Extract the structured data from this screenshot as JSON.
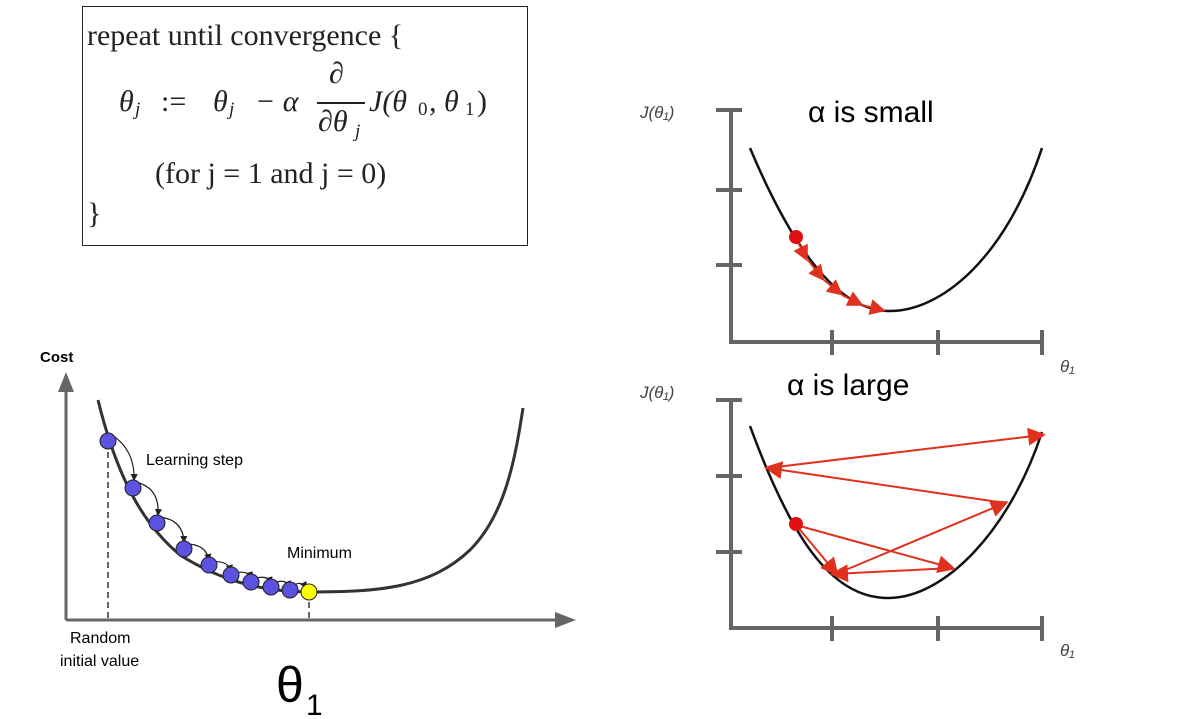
{
  "formula": {
    "line1": "repeat until convergence {",
    "theta_j": "θ",
    "sub_j": "j",
    "assign": ":=",
    "minus_alpha": "− α",
    "partial_num": "∂",
    "partial_den": "∂θ",
    "cost_fn": "J(θ",
    "cost_fn_sub0": "0",
    "cost_fn_mid": ", θ",
    "cost_fn_sub1": "1",
    "cost_fn_end": ")",
    "line3": "(for j = 1 and j = 0)",
    "closing": "}"
  },
  "left_diagram": {
    "y_label": "Cost",
    "step_label": "Learning step",
    "minimum_label": "Minimum",
    "start_label_1": "Random",
    "start_label_2": "initial value",
    "x_label_main": "θ",
    "x_label_sub": "1",
    "colors": {
      "step_dot": "#5b52e0",
      "minimum_dot": "#ffff00",
      "curve": "#333333"
    }
  },
  "right_top": {
    "title": "α is small",
    "y_label": "J(θ₁)",
    "x_label": "θ₁",
    "colors": {
      "arrow": "#e0301e",
      "start_dot": "#e01010"
    }
  },
  "right_bottom": {
    "title": "α is large",
    "y_label": "J(θ₁)",
    "x_label": "θ₁",
    "colors": {
      "arrow": "#e0301e",
      "start_dot": "#e01010"
    }
  }
}
